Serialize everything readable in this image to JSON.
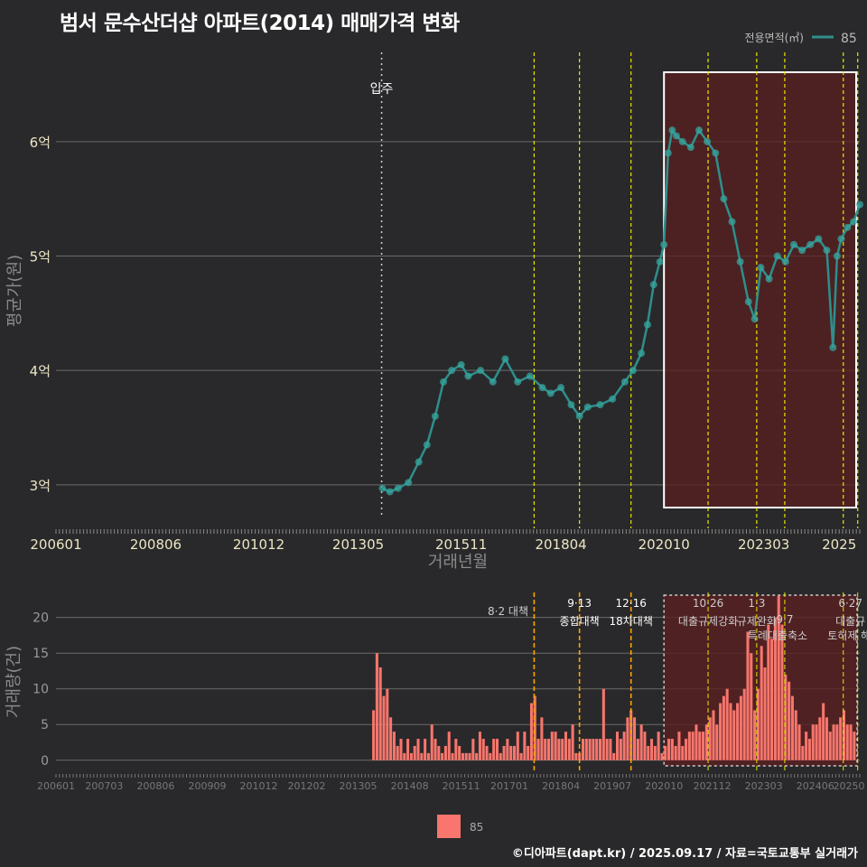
{
  "title": "범서 문수산더샵 아파트(2014) 매매가격 변화",
  "credit": "©디아파트(dapt.kr) / 2025.09.17 / 자료=국토교통부 실거래가",
  "colors": {
    "background": "#29292b",
    "price_line": "#2e8f8c",
    "price_point": "#37a59f",
    "volume_bar": "#f8766d",
    "shade": "#5a1f20",
    "policy_line": "#e8e800",
    "policy_line_volume": "#ffa500"
  },
  "legend": {
    "title": "전용면적(㎡)",
    "item": "85",
    "bottom_item": "85"
  },
  "chart_data": [
    {
      "type": "line",
      "title": "범서 문수산더샵 아파트(2014) 매매가격 변화",
      "xlabel": "거래년월",
      "ylabel": "평균가(원)",
      "x_domain": [
        2006.0,
        2025.5
      ],
      "ylim": [
        2.62,
        6.78
      ],
      "yticks": [
        3,
        4,
        5,
        6
      ],
      "ytick_labels": [
        "3억",
        "4억",
        "5억",
        "6억"
      ],
      "xtick_values": [
        2006.0,
        2008.42,
        2010.92,
        2013.33,
        2015.83,
        2018.25,
        2020.75,
        2023.17,
        2025.0
      ],
      "xtick_labels": [
        "200601",
        "200806",
        "201012",
        "201305",
        "201511",
        "201804",
        "202010",
        "202303",
        "2025"
      ],
      "annotation": {
        "x": 2013.9,
        "label": "입주"
      },
      "policy_dates": [
        2017.6,
        2018.7,
        2019.95,
        2021.82,
        2023.0,
        2023.68,
        2025.1,
        2025.45
      ],
      "highlight_range": [
        2020.75,
        2025.5
      ],
      "series": [
        {
          "name": "85",
          "x": [
            2013.92,
            2014.1,
            2014.3,
            2014.55,
            2014.8,
            2015.0,
            2015.2,
            2015.4,
            2015.6,
            2015.83,
            2016.0,
            2016.3,
            2016.6,
            2016.9,
            2017.2,
            2017.5,
            2017.8,
            2018.0,
            2018.25,
            2018.5,
            2018.7,
            2018.9,
            2019.2,
            2019.5,
            2019.8,
            2020.0,
            2020.2,
            2020.35,
            2020.5,
            2020.65,
            2020.75,
            2020.85,
            2020.95,
            2021.05,
            2021.2,
            2021.4,
            2021.6,
            2021.8,
            2022.0,
            2022.2,
            2022.4,
            2022.6,
            2022.8,
            2022.95,
            2023.1,
            2023.3,
            2023.5,
            2023.7,
            2023.9,
            2024.1,
            2024.3,
            2024.5,
            2024.7,
            2024.85,
            2024.95,
            2025.05,
            2025.2,
            2025.35,
            2025.5
          ],
          "values": [
            2.97,
            2.94,
            2.97,
            3.02,
            3.2,
            3.35,
            3.6,
            3.9,
            4.0,
            4.05,
            3.95,
            4.0,
            3.9,
            4.1,
            3.9,
            3.95,
            3.85,
            3.8,
            3.85,
            3.7,
            3.6,
            3.68,
            3.7,
            3.75,
            3.9,
            4.0,
            4.15,
            4.4,
            4.75,
            4.95,
            5.1,
            5.9,
            6.1,
            6.05,
            6.0,
            5.95,
            6.1,
            6.0,
            5.9,
            5.5,
            5.3,
            4.95,
            4.6,
            4.45,
            4.9,
            4.8,
            5.0,
            4.95,
            5.1,
            5.05,
            5.1,
            5.15,
            5.05,
            4.2,
            5.0,
            5.15,
            5.25,
            5.3,
            5.45
          ]
        }
      ]
    },
    {
      "type": "bar",
      "title": "",
      "xlabel": "",
      "ylabel": "거래량(건)",
      "x_domain": [
        2006.0,
        2025.5
      ],
      "ylim": [
        -1.8,
        23.5
      ],
      "yticks": [
        0,
        5,
        10,
        15,
        20
      ],
      "ytick_labels": [
        "0",
        "5",
        "10",
        "15",
        "20"
      ],
      "xtick_values": [
        2006.0,
        2007.17,
        2008.42,
        2009.67,
        2010.92,
        2012.08,
        2013.33,
        2014.58,
        2015.83,
        2017.0,
        2018.25,
        2019.5,
        2020.75,
        2021.92,
        2023.17,
        2024.42,
        2025.5
      ],
      "xtick_labels": [
        "200601",
        "200703",
        "200806",
        "200909",
        "201012",
        "201202",
        "201305",
        "201408",
        "201511",
        "201701",
        "201804",
        "201907",
        "202010",
        "202112",
        "202303",
        "202406",
        "20250"
      ],
      "policy_labels": [
        {
          "x": 2017.58,
          "date": "8·2 대책",
          "name": ""
        },
        {
          "x": 2018.7,
          "date": "9·13",
          "name": "종합대책"
        },
        {
          "x": 2019.95,
          "date": "12·16",
          "name": "18차대책"
        },
        {
          "x": 2021.82,
          "date": "10·26",
          "name": "대출규제강화"
        },
        {
          "x": 2023.0,
          "date": "1·3",
          "name": "규제완화"
        },
        {
          "x": 2023.68,
          "date": "",
          "name": "9·7"
        },
        {
          "x": 2023.68,
          "date": "",
          "name": "특례대출축소"
        },
        {
          "x": 2025.1,
          "date": "",
          "name": "토허제 해제"
        },
        {
          "x": 2025.45,
          "date": "6·27",
          "name": "대출규"
        }
      ],
      "series": [
        {
          "name": "85",
          "x_start": 2013.67,
          "step": 0.0833,
          "values": [
            7,
            15,
            13,
            9,
            10,
            6,
            4,
            2,
            3,
            1,
            3,
            1,
            2,
            3,
            1,
            3,
            1,
            5,
            3,
            2,
            1,
            2,
            4,
            1,
            3,
            2,
            1,
            1,
            1,
            3,
            1,
            4,
            3,
            2,
            1,
            3,
            3,
            1,
            2,
            3,
            2,
            2,
            4,
            1,
            4,
            2,
            8,
            9,
            3,
            6,
            3,
            3,
            4,
            4,
            3,
            3,
            4,
            3,
            5,
            1,
            1,
            3,
            3,
            3,
            3,
            3,
            3,
            10,
            3,
            3,
            1,
            4,
            3,
            4,
            6,
            7,
            6,
            3,
            5,
            4,
            2,
            3,
            2,
            4,
            1,
            2,
            3,
            3,
            2,
            4,
            2,
            3,
            4,
            4,
            5,
            4,
            4,
            5,
            6,
            7,
            5,
            8,
            9,
            10,
            8,
            7,
            8,
            9,
            10,
            18,
            15,
            7,
            10,
            16,
            13,
            19,
            17,
            20,
            23,
            19,
            12,
            11,
            9,
            7,
            5,
            2,
            4,
            3,
            5,
            5,
            6,
            8,
            6,
            4,
            5,
            5,
            6,
            7,
            5,
            5,
            4,
            4,
            3,
            4,
            6,
            7,
            8,
            9,
            3,
            3,
            1,
            2,
            2,
            3,
            2,
            3,
            3,
            2,
            2,
            2,
            2,
            3,
            4,
            4,
            5,
            6,
            7,
            8,
            5,
            6,
            5,
            4,
            6,
            5,
            10,
            15,
            10,
            8,
            6,
            7,
            7,
            9,
            10,
            9,
            11,
            8,
            9,
            11,
            7,
            4,
            5,
            3,
            6
          ]
        }
      ]
    }
  ]
}
